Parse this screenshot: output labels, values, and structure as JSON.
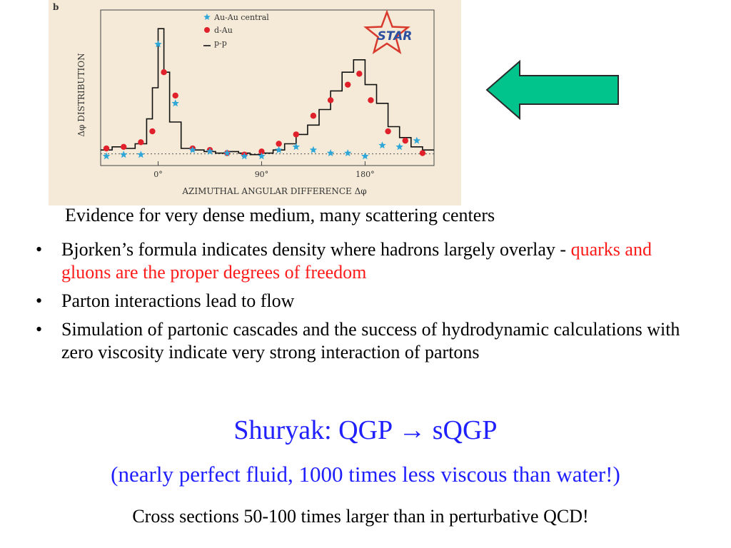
{
  "chart_data": {
    "type": "scatter",
    "panel_label": "b",
    "xlabel": "AZIMUTHAL ANGULAR DIFFERENCE Δφ",
    "ylabel": "Δφ DISTRIBUTION",
    "xticks": [
      {
        "value": 0,
        "label": "0°"
      },
      {
        "value": 90,
        "label": "90°"
      },
      {
        "value": 180,
        "label": "180°"
      }
    ],
    "xlim": [
      -50,
      240
    ],
    "ylim": [
      0,
      1.0
    ],
    "baseline": 0.075,
    "legend_position": "top-center",
    "logo_text": "STAR",
    "series": [
      {
        "name": "Au-Au central",
        "marker": "star",
        "color": "#2ea6d8",
        "x": [
          -45,
          -30,
          -15,
          0,
          15,
          30,
          45,
          60,
          75,
          90,
          105,
          120,
          135,
          150,
          165,
          180,
          195,
          210,
          225
        ],
        "y": [
          0.06,
          0.07,
          0.07,
          0.78,
          0.4,
          0.1,
          0.09,
          0.08,
          0.06,
          0.06,
          0.1,
          0.12,
          0.1,
          0.08,
          0.08,
          0.06,
          0.13,
          0.12,
          0.16
        ]
      },
      {
        "name": "d-Au",
        "marker": "circle",
        "color": "#e0202a",
        "x": [
          -45,
          -30,
          -15,
          -5,
          5,
          15,
          30,
          45,
          60,
          75,
          90,
          105,
          120,
          135,
          150,
          165,
          175,
          185,
          200,
          215,
          230
        ],
        "y": [
          0.11,
          0.12,
          0.15,
          0.22,
          0.6,
          0.45,
          0.11,
          0.1,
          0.08,
          0.07,
          0.09,
          0.14,
          0.2,
          0.32,
          0.42,
          0.52,
          0.59,
          0.42,
          0.22,
          0.16,
          0.08
        ]
      },
      {
        "name": "p-p",
        "marker": "step",
        "color": "#111111",
        "x": [
          -50,
          -40,
          -30,
          -20,
          -10,
          -5,
          0,
          5,
          10,
          20,
          30,
          40,
          50,
          60,
          70,
          80,
          90,
          100,
          110,
          120,
          130,
          140,
          150,
          160,
          170,
          180,
          190,
          200,
          210,
          220,
          230,
          240
        ],
        "y": [
          0.1,
          0.12,
          0.11,
          0.14,
          0.3,
          0.5,
          0.88,
          0.6,
          0.28,
          0.11,
          0.1,
          0.09,
          0.08,
          0.09,
          0.08,
          0.07,
          0.08,
          0.1,
          0.14,
          0.2,
          0.26,
          0.36,
          0.48,
          0.6,
          0.68,
          0.52,
          0.4,
          0.25,
          0.18,
          0.12,
          0.1,
          0.08
        ]
      }
    ]
  },
  "slide": {
    "evidence": "Evidence for very dense medium, many scattering centers",
    "bullets": [
      {
        "text": "Bjorken’s formula indicates density where hadrons largely overlay - ",
        "highlight": "quarks and gluons are the proper degrees of freedom"
      },
      {
        "text": "Parton interactions lead to flow",
        "highlight": ""
      },
      {
        "text": "Simulation of partonic cascades and the success of hydrodynamic calculations with zero viscosity indicate very strong interaction of partons",
        "highlight": ""
      }
    ],
    "bullet_glyph": "•",
    "shuryak_prefix": "Shuryak: QGP ",
    "shuryak_arrow": "→",
    "shuryak_suffix": " sQGP",
    "fluid_note": "(nearly perfect fluid, 1000 times less viscous than water!)",
    "cross_sections": "Cross sections 50-100 times larger than in perturbative QCD!"
  },
  "colors": {
    "figure_bg": "#f4ead7",
    "arrow_fill": "#00c48c",
    "highlight_red": "#ff1a1a",
    "title_blue": "#2020ff"
  }
}
